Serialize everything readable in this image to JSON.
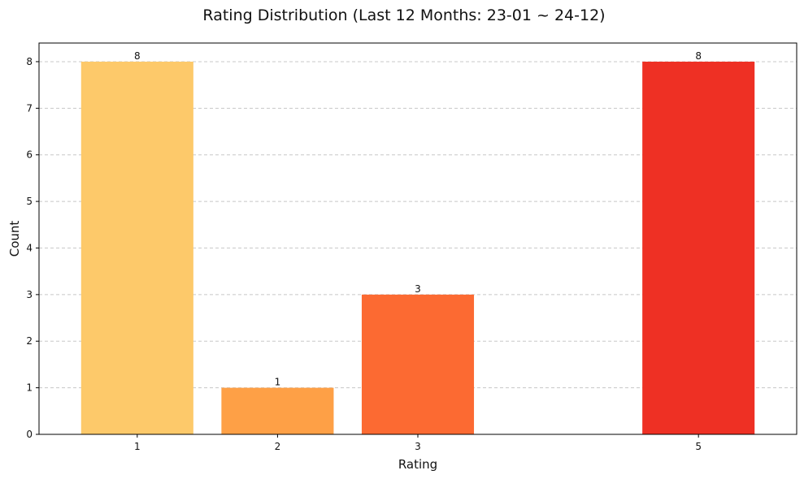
{
  "chart_data": {
    "type": "bar",
    "title": "Rating Distribution (Last 12 Months: 23-01 ~ 24-12)",
    "xlabel": "Rating",
    "ylabel": "Count",
    "categories": [
      "1",
      "2",
      "3",
      "5"
    ],
    "x": [
      1,
      2,
      3,
      5
    ],
    "values": [
      8,
      1,
      3,
      8
    ],
    "data_labels": [
      "8",
      "1",
      "3",
      "8"
    ],
    "xlim": [
      0.3,
      5.7
    ],
    "ylim": [
      0,
      8.4
    ],
    "yticks": [
      0,
      1,
      2,
      3,
      4,
      5,
      6,
      7,
      8
    ],
    "grid": "y-dashed",
    "bar_colors": [
      "#fdc96a",
      "#fea046",
      "#fc6a32",
      "#ee3024"
    ]
  }
}
